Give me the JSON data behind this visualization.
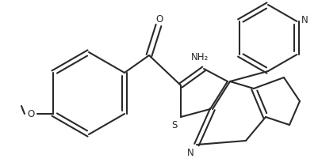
{
  "bg_color": "#ffffff",
  "line_color": "#2a2a2a",
  "line_width": 1.5,
  "figsize": [
    4.01,
    2.1
  ],
  "dpi": 100,
  "atoms": {
    "S_label": "S",
    "N_label": "N",
    "O_label": "O",
    "NH2_label": "NH₂",
    "N2_label": "N",
    "OCH3_label": "O"
  },
  "font_size": 8.5
}
